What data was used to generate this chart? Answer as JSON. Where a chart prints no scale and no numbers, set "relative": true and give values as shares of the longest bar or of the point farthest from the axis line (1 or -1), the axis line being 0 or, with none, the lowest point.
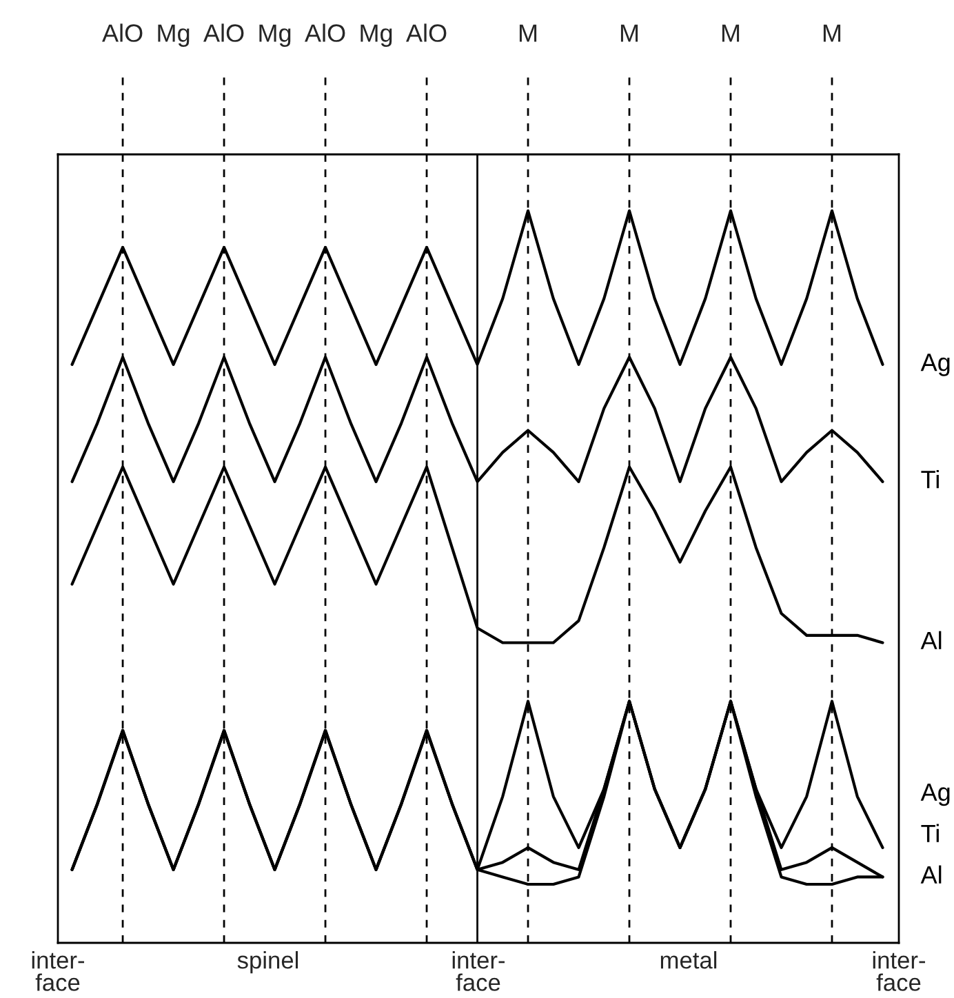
{
  "chart_data": {
    "type": "line",
    "relative": true,
    "legend": false,
    "grid": "x",
    "tick_labels": "x",
    "marker": "none",
    "line_style": "solid",
    "categories": [
      null,
      null,
      "AlO",
      null,
      "Mg",
      null,
      "AlO",
      null,
      "Mg",
      null,
      "AlO",
      null,
      "Mg",
      null,
      "AlO",
      null,
      null,
      null,
      "M",
      null,
      null,
      null,
      "M",
      null,
      null,
      null,
      "M",
      null,
      null,
      null,
      "M",
      null,
      null
    ],
    "series": [
      {
        "name": "Ag",
        "color": "#000000",
        "values": [
          0.79,
          0.87,
          0.95,
          0.87,
          0.79,
          0.87,
          0.95,
          0.87,
          0.79,
          0.87,
          0.95,
          0.87,
          0.79,
          0.87,
          0.95,
          0.87,
          0.79,
          0.88,
          1.0,
          0.88,
          0.79,
          0.88,
          1.0,
          0.88,
          0.79,
          0.88,
          1.0,
          0.88,
          0.79,
          0.88,
          1.0,
          0.88,
          0.79
        ]
      },
      {
        "name": "Ti",
        "color": "#000000",
        "values": [
          0.63,
          0.71,
          0.8,
          0.71,
          0.63,
          0.71,
          0.8,
          0.71,
          0.63,
          0.71,
          0.8,
          0.71,
          0.63,
          0.71,
          0.8,
          0.71,
          0.63,
          0.67,
          0.7,
          0.67,
          0.63,
          0.73,
          0.8,
          0.73,
          0.63,
          0.73,
          0.8,
          0.73,
          0.63,
          0.67,
          0.7,
          0.67,
          0.63
        ]
      },
      {
        "name": "Al",
        "color": "#000000",
        "values": [
          0.49,
          0.57,
          0.65,
          0.57,
          0.49,
          0.57,
          0.65,
          0.57,
          0.49,
          0.57,
          0.65,
          0.57,
          0.49,
          0.57,
          0.65,
          0.54,
          0.43,
          0.41,
          0.41,
          0.41,
          0.44,
          0.54,
          0.65,
          0.59,
          0.52,
          0.59,
          0.65,
          0.54,
          0.45,
          0.42,
          0.42,
          0.42,
          0.41
        ]
      },
      {
        "name": "Ag",
        "color": "#000000",
        "values": [
          0.1,
          0.19,
          0.29,
          0.19,
          0.1,
          0.19,
          0.29,
          0.19,
          0.1,
          0.19,
          0.29,
          0.19,
          0.1,
          0.19,
          0.29,
          0.19,
          0.1,
          0.2,
          0.33,
          0.2,
          0.13,
          0.21,
          0.33,
          0.21,
          0.13,
          0.21,
          0.33,
          0.21,
          0.13,
          0.2,
          0.33,
          0.2,
          0.13
        ]
      },
      {
        "name": "Ti",
        "color": "#000000",
        "values": [
          0.1,
          0.19,
          0.29,
          0.19,
          0.1,
          0.19,
          0.29,
          0.19,
          0.1,
          0.19,
          0.29,
          0.19,
          0.1,
          0.19,
          0.29,
          0.19,
          0.1,
          0.11,
          0.13,
          0.11,
          0.1,
          0.21,
          0.33,
          0.21,
          0.13,
          0.21,
          0.33,
          0.21,
          0.1,
          0.11,
          0.13,
          0.11,
          0.09
        ]
      },
      {
        "name": "Al",
        "color": "#000000",
        "values": [
          0.1,
          0.19,
          0.29,
          0.19,
          0.1,
          0.19,
          0.29,
          0.19,
          0.1,
          0.19,
          0.29,
          0.19,
          0.1,
          0.19,
          0.29,
          0.19,
          0.1,
          0.09,
          0.08,
          0.08,
          0.09,
          0.2,
          0.33,
          0.21,
          0.13,
          0.21,
          0.33,
          0.2,
          0.09,
          0.08,
          0.08,
          0.09,
          0.09
        ]
      }
    ],
    "annotations": [
      "inter-\nface",
      "spinel",
      "inter-\nface",
      "metal",
      "inter-\nface"
    ]
  }
}
